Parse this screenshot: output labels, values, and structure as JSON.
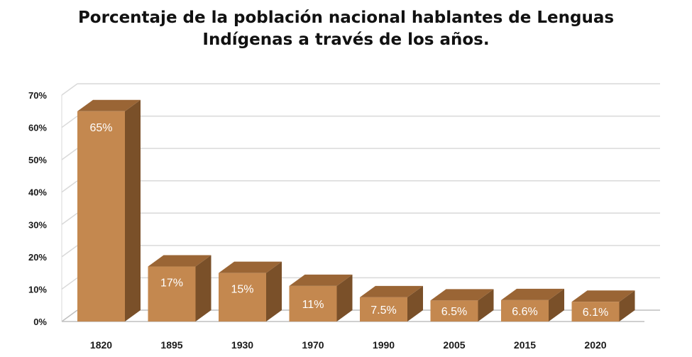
{
  "chart_data": {
    "type": "bar",
    "title_line1": "Porcentaje de la población nacional hablantes de Lenguas",
    "title_line2": "Indígenas a través de los años.",
    "categories": [
      "1820",
      "1895",
      "1930",
      "1970",
      "1990",
      "2005",
      "2015",
      "2020"
    ],
    "values": [
      65,
      17,
      15,
      11,
      7.5,
      6.5,
      6.6,
      6.1
    ],
    "data_labels": [
      "65%",
      "17%",
      "15%",
      "11%",
      "7.5%",
      "6.5%",
      "6.6%",
      "6.1%"
    ],
    "y_ticks": [
      "0%",
      "10%",
      "20%",
      "30%",
      "40%",
      "50%",
      "60%",
      "70%"
    ],
    "ylim": [
      0,
      70
    ],
    "xlabel": "",
    "ylabel": "",
    "grid": true,
    "legend": "none",
    "colors": {
      "front": "#c4884f",
      "top": "#9a6535",
      "side": "#7a5029",
      "grid": "#d9d9d9",
      "floor": "#bfbfbf"
    }
  }
}
